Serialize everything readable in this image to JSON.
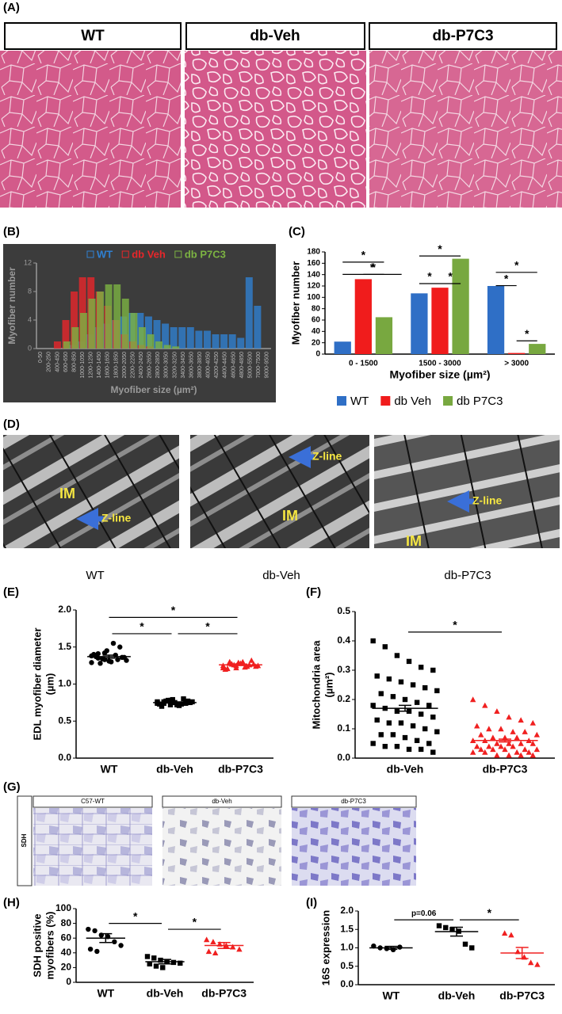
{
  "panel_labels": [
    "(A)",
    "(B)",
    "(C)",
    "(D)",
    "(E)",
    "(F)",
    "(G)",
    "(H)",
    "(I)"
  ],
  "panel_a": {
    "images": [
      "WT",
      "db-Veh",
      "db-P7C3"
    ]
  },
  "panel_d": {
    "images": [
      {
        "caption": "WT",
        "labels": [
          "IM",
          "Z-line"
        ]
      },
      {
        "caption": "db-Veh",
        "labels": [
          "Z-line",
          "IM"
        ]
      },
      {
        "caption": "db-P7C3",
        "labels": [
          "Z-line",
          "IM"
        ]
      }
    ]
  },
  "panel_g": {
    "row_label": "SDH",
    "images": [
      "C57-WT",
      "db-Veh",
      "db-P7C3"
    ]
  },
  "chart_data": [
    {
      "type": "bar",
      "mode": "overlap",
      "ylabel": [
        "Myofiber number"
      ],
      "xlabel": "Myofiber size (µm²)",
      "categories": [
        "0-50",
        "200-250",
        "400-450",
        "600-650",
        "800-850",
        "1000-1050",
        "1200-1250",
        "1400-1450",
        "1600-1650",
        "1800-1850",
        "2000-2050",
        "2200-2250",
        "2400-2450",
        "2600-2650",
        "2800-2850",
        "3000-3050",
        "3200-3250",
        "3400-3450",
        "3600-3650",
        "3800-3850",
        "4000-4050",
        "4200-4250",
        "4400-4450",
        "4600-4650",
        "4800-4850",
        "5000-5500",
        "7000-7500",
        "9000-9500"
      ],
      "series": [
        {
          "name": "WT",
          "color": "#2f7fd0",
          "values": [
            0,
            0,
            0,
            0,
            0.5,
            1,
            2,
            3,
            3.5,
            4,
            4.5,
            5,
            5,
            4.5,
            4,
            3.5,
            3,
            3,
            3,
            2.5,
            2.5,
            2,
            2,
            2,
            1.5,
            10,
            6,
            0
          ]
        },
        {
          "name": "db Veh",
          "color": "#e8262a",
          "values": [
            0,
            0,
            1,
            4,
            8,
            10,
            10,
            8,
            6,
            4,
            2,
            1,
            0.5,
            0.3,
            0,
            0,
            0,
            0,
            0,
            0,
            0,
            0,
            0,
            0,
            0,
            0,
            0,
            0
          ]
        },
        {
          "name": "db P7C3",
          "color": "#7cb342",
          "values": [
            0,
            0,
            0,
            1,
            3,
            5,
            7,
            8,
            9,
            9,
            7,
            5,
            3,
            2,
            1,
            0.5,
            0.3,
            0,
            0,
            0,
            0,
            0,
            0,
            0,
            0,
            0,
            0,
            0
          ]
        }
      ],
      "ylim": [
        0,
        12
      ],
      "yticks": [
        0,
        4,
        8,
        12
      ]
    },
    {
      "type": "bar",
      "mode": "group",
      "ylabel": [
        "Myofiber number"
      ],
      "xlabel": "Myofiber size (µm²)",
      "categories": [
        "0 - 1500",
        "1500 - 3000",
        "> 3000"
      ],
      "series": [
        {
          "name": "WT",
          "color": "#2f6fc6",
          "values": [
            22,
            107,
            120
          ]
        },
        {
          "name": "db Veh",
          "color": "#f01c1c",
          "values": [
            132,
            117,
            2
          ]
        },
        {
          "name": "db P7C3",
          "color": "#78a840",
          "values": [
            65,
            168,
            18
          ]
        }
      ],
      "ylim": [
        0,
        180
      ],
      "yticks": [
        0,
        20,
        40,
        60,
        80,
        100,
        120,
        140,
        160,
        180
      ],
      "annotations": [
        "*",
        "*",
        "*",
        "*",
        "*",
        "*",
        "*",
        "*",
        "*"
      ]
    },
    {
      "type": "strip",
      "ylabel": [
        "EDL myofiber diameter",
        "(µm)"
      ],
      "groups": [
        {
          "name": "WT",
          "color": "#000000",
          "marker": "circle",
          "values": [
            1.38,
            1.35,
            1.42,
            1.3,
            1.33,
            1.36,
            1.4,
            1.28,
            1.45,
            1.55,
            1.5,
            1.32,
            1.37,
            1.34,
            1.31,
            1.39,
            1.36,
            1.29,
            1.41,
            1.33
          ],
          "mean": 1.37,
          "sem": 0.02
        },
        {
          "name": "db-Veh",
          "color": "#000000",
          "marker": "square",
          "values": [
            0.76,
            0.74,
            0.78,
            0.72,
            0.8,
            0.75,
            0.73,
            0.77,
            0.79,
            0.71,
            0.74,
            0.76,
            0.7,
            0.78,
            0.75,
            0.73,
            0.77,
            0.74,
            0.76,
            0.72
          ],
          "mean": 0.75,
          "sem": 0.01
        },
        {
          "name": "db-P7C3",
          "color": "#f02020",
          "marker": "triangle",
          "values": [
            1.25,
            1.28,
            1.22,
            1.3,
            1.26,
            1.24,
            1.2,
            1.27,
            1.29,
            1.23,
            1.32,
            1.25,
            1.21,
            1.26,
            1.28,
            1.24,
            1.27,
            1.22,
            1.3,
            1.25
          ],
          "mean": 1.26,
          "sem": 0.01
        }
      ],
      "ylim": [
        0,
        2
      ],
      "yticks": [
        {
          "value": 0,
          "label": "0.0"
        },
        {
          "value": 0.5,
          "label": "0.5"
        },
        {
          "value": 1,
          "label": "1.0"
        },
        {
          "value": 1.5,
          "label": "1.5"
        },
        {
          "value": 2,
          "label": "2.0"
        }
      ],
      "annotations": [
        "*",
        "*",
        "*"
      ]
    },
    {
      "type": "strip",
      "ylabel": [
        "Mitochondria area",
        "(µm²)"
      ],
      "groups": [
        {
          "name": "db-Veh",
          "color": "#000000",
          "marker": "square",
          "values": [
            0.4,
            0.38,
            0.35,
            0.33,
            0.31,
            0.3,
            0.28,
            0.27,
            0.26,
            0.25,
            0.24,
            0.23,
            0.22,
            0.21,
            0.2,
            0.19,
            0.18,
            0.18,
            0.17,
            0.16,
            0.16,
            0.15,
            0.14,
            0.13,
            0.12,
            0.12,
            0.11,
            0.1,
            0.09,
            0.08,
            0.08,
            0.07,
            0.06,
            0.05,
            0.05,
            0.04,
            0.04,
            0.03,
            0.03,
            0.02
          ],
          "mean": 0.17,
          "sem": 0.01
        },
        {
          "name": "db-P7C3",
          "color": "#f02020",
          "marker": "triangle",
          "values": [
            0.2,
            0.18,
            0.16,
            0.14,
            0.13,
            0.12,
            0.11,
            0.1,
            0.1,
            0.09,
            0.09,
            0.08,
            0.08,
            0.07,
            0.07,
            0.07,
            0.06,
            0.06,
            0.06,
            0.05,
            0.05,
            0.05,
            0.05,
            0.04,
            0.04,
            0.04,
            0.04,
            0.03,
            0.03,
            0.03,
            0.03,
            0.03,
            0.02,
            0.02,
            0.02,
            0.02,
            0.01,
            0.01,
            0.01,
            0.01
          ],
          "mean": 0.06,
          "sem": 0.005
        }
      ],
      "ylim": [
        0,
        0.5
      ],
      "yticks": [
        {
          "value": 0,
          "label": "0.0"
        },
        0.1,
        0.2,
        0.3,
        0.4,
        0.5
      ],
      "annotations": [
        "*"
      ]
    },
    {
      "type": "strip",
      "ylabel": [
        "SDH positive",
        "myofibers (%)"
      ],
      "groups": [
        {
          "name": "WT",
          "color": "#000000",
          "marker": "circle",
          "values": [
            72,
            70,
            64,
            62,
            55,
            50,
            45,
            42
          ],
          "mean": 60,
          "sem": 6
        },
        {
          "name": "db-Veh",
          "color": "#000000",
          "marker": "square",
          "values": [
            35,
            33,
            30,
            28,
            27,
            26,
            25,
            22,
            20
          ],
          "mean": 28,
          "sem": 3
        },
        {
          "name": "db-P7C3",
          "color": "#f02020",
          "marker": "triangle",
          "values": [
            58,
            55,
            52,
            50,
            48,
            45,
            42,
            40
          ],
          "mean": 50,
          "sem": 4
        }
      ],
      "ylim": [
        0,
        100
      ],
      "yticks": [
        0,
        20,
        40,
        60,
        80,
        100
      ],
      "annotations": [
        "*",
        "*"
      ]
    },
    {
      "type": "strip",
      "ylabel": [
        "16S expression"
      ],
      "groups": [
        {
          "name": "WT",
          "color": "#000000",
          "marker": "circle",
          "values": [
            1.05,
            1.0,
            0.98,
            0.95,
            1.02
          ],
          "mean": 1.0,
          "sem": 0.04
        },
        {
          "name": "db-Veh",
          "color": "#000000",
          "marker": "square",
          "values": [
            1.6,
            1.55,
            1.5,
            1.45,
            1.1,
            1.0
          ],
          "mean": 1.44,
          "sem": 0.12
        },
        {
          "name": "db-P7C3",
          "color": "#f02020",
          "marker": "triangle",
          "values": [
            1.4,
            1.35,
            0.9,
            0.75,
            0.6,
            0.55
          ],
          "mean": 0.86,
          "sem": 0.15
        }
      ],
      "ylim": [
        0,
        2
      ],
      "yticks": [
        {
          "value": 0,
          "label": "0.0"
        },
        {
          "value": 0.5,
          "label": "0.5"
        },
        {
          "value": 1,
          "label": "1.0"
        },
        {
          "value": 1.5,
          "label": "1.5"
        },
        {
          "value": 2,
          "label": "2.0"
        }
      ],
      "annotations": [
        "p=0.06",
        "*"
      ]
    }
  ]
}
